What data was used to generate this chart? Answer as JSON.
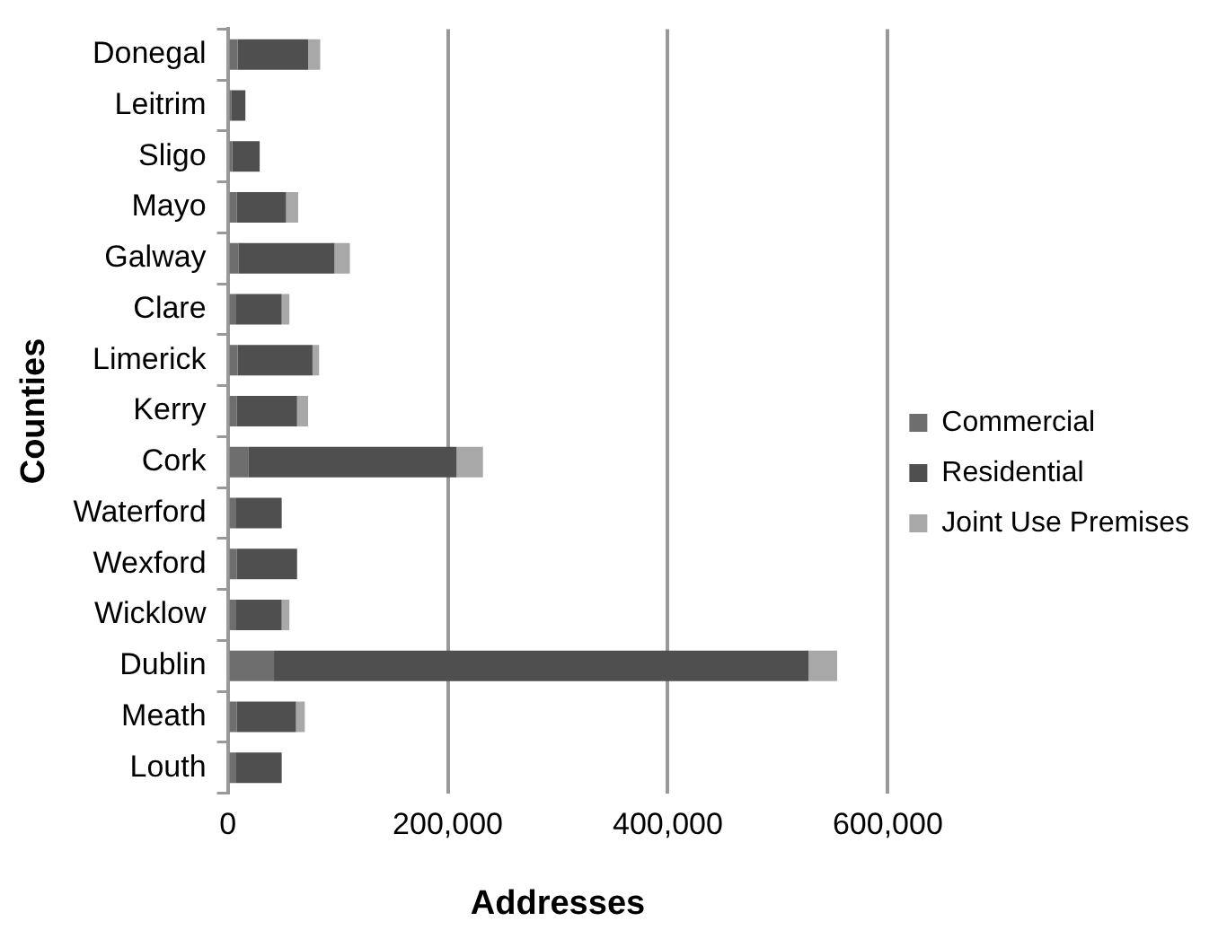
{
  "chart_data": {
    "type": "bar",
    "orientation": "horizontal",
    "stacked": true,
    "xlabel": "Addresses",
    "ylabel": "Counties",
    "categories": [
      "Donegal",
      "Leitrim",
      "Sligo",
      "Mayo",
      "Galway",
      "Clare",
      "Limerick",
      "Kerry",
      "Cork",
      "Waterford",
      "Wexford",
      "Wicklow",
      "Dublin",
      "Meath",
      "Louth"
    ],
    "series": [
      {
        "name": "Commercial",
        "color": "#6e6e6e",
        "values": [
          9000,
          3000,
          4000,
          8000,
          10000,
          7000,
          9000,
          8000,
          19000,
          7000,
          8000,
          7000,
          42000,
          8000,
          7000
        ]
      },
      {
        "name": "Residential",
        "color": "#4f4f4f",
        "values": [
          64000,
          13000,
          25000,
          45000,
          87000,
          42000,
          68000,
          55000,
          189000,
          42000,
          55000,
          42000,
          486000,
          54000,
          42000
        ]
      },
      {
        "name": "Joint Use Premises",
        "color": "#a8a8a8",
        "values": [
          11000,
          null,
          null,
          11000,
          14000,
          7000,
          6000,
          10000,
          24000,
          null,
          null,
          7000,
          26000,
          8000,
          null
        ]
      }
    ],
    "xlim": [
      0,
      600000
    ],
    "xticks": [
      {
        "value": 0,
        "label": "0"
      },
      {
        "value": 200000,
        "label": "200,000"
      },
      {
        "value": 400000,
        "label": "400,000"
      },
      {
        "value": 600000,
        "label": "600,000"
      }
    ],
    "grid": "x",
    "legend": "right"
  }
}
